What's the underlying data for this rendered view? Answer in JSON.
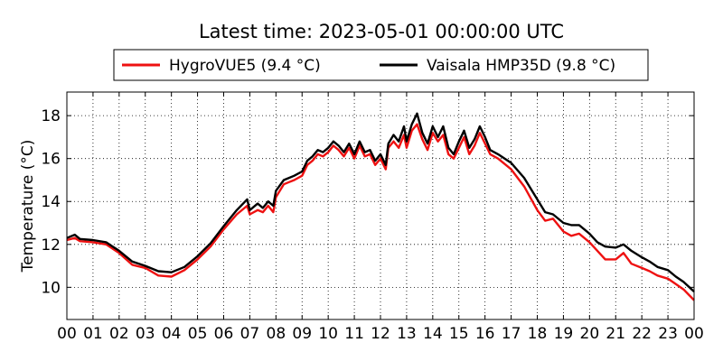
{
  "chart_data": {
    "type": "line",
    "title": "Latest time: 2023-05-01 00:00:00 UTC",
    "ylabel": "Temperature (°C)",
    "xlabel": "",
    "xlim": [
      0,
      24
    ],
    "ylim": [
      8.5,
      19.1
    ],
    "x_ticks": [
      "00",
      "01",
      "02",
      "03",
      "04",
      "05",
      "06",
      "07",
      "08",
      "09",
      "10",
      "11",
      "12",
      "13",
      "14",
      "15",
      "16",
      "17",
      "18",
      "19",
      "20",
      "21",
      "22",
      "23",
      "00"
    ],
    "y_ticks": [
      "10",
      "12",
      "14",
      "16",
      "18"
    ],
    "grid": true,
    "legend_position": "top-center",
    "series": [
      {
        "name": "HygroVUE5 (9.4 °C)",
        "color": "#ee1111",
        "points": [
          [
            0.0,
            12.2
          ],
          [
            0.3,
            12.3
          ],
          [
            0.5,
            12.15
          ],
          [
            1.0,
            12.1
          ],
          [
            1.5,
            12.0
          ],
          [
            2.0,
            11.6
          ],
          [
            2.5,
            11.05
          ],
          [
            3.0,
            10.9
          ],
          [
            3.5,
            10.55
          ],
          [
            4.0,
            10.5
          ],
          [
            4.5,
            10.8
          ],
          [
            5.0,
            11.3
          ],
          [
            5.5,
            11.9
          ],
          [
            6.0,
            12.7
          ],
          [
            6.5,
            13.4
          ],
          [
            6.9,
            13.8
          ],
          [
            7.0,
            13.4
          ],
          [
            7.3,
            13.6
          ],
          [
            7.5,
            13.5
          ],
          [
            7.7,
            13.8
          ],
          [
            7.9,
            13.5
          ],
          [
            8.0,
            14.2
          ],
          [
            8.3,
            14.8
          ],
          [
            8.5,
            14.9
          ],
          [
            8.7,
            15.0
          ],
          [
            9.0,
            15.2
          ],
          [
            9.2,
            15.7
          ],
          [
            9.4,
            15.9
          ],
          [
            9.6,
            16.2
          ],
          [
            9.8,
            16.1
          ],
          [
            10.0,
            16.3
          ],
          [
            10.2,
            16.6
          ],
          [
            10.4,
            16.4
          ],
          [
            10.6,
            16.1
          ],
          [
            10.8,
            16.5
          ],
          [
            11.0,
            16.0
          ],
          [
            11.2,
            16.6
          ],
          [
            11.4,
            16.1
          ],
          [
            11.6,
            16.2
          ],
          [
            11.8,
            15.7
          ],
          [
            12.0,
            16.0
          ],
          [
            12.2,
            15.5
          ],
          [
            12.3,
            16.5
          ],
          [
            12.5,
            16.8
          ],
          [
            12.7,
            16.5
          ],
          [
            12.9,
            17.1
          ],
          [
            13.0,
            16.5
          ],
          [
            13.2,
            17.3
          ],
          [
            13.4,
            17.6
          ],
          [
            13.6,
            16.9
          ],
          [
            13.8,
            16.4
          ],
          [
            14.0,
            17.2
          ],
          [
            14.2,
            16.8
          ],
          [
            14.4,
            17.1
          ],
          [
            14.6,
            16.2
          ],
          [
            14.8,
            16.0
          ],
          [
            15.0,
            16.5
          ],
          [
            15.2,
            17.0
          ],
          [
            15.4,
            16.2
          ],
          [
            15.6,
            16.6
          ],
          [
            15.8,
            17.2
          ],
          [
            16.0,
            16.7
          ],
          [
            16.2,
            16.2
          ],
          [
            16.5,
            16.0
          ],
          [
            17.0,
            15.5
          ],
          [
            17.5,
            14.7
          ],
          [
            18.0,
            13.6
          ],
          [
            18.3,
            13.1
          ],
          [
            18.6,
            13.2
          ],
          [
            19.0,
            12.6
          ],
          [
            19.3,
            12.4
          ],
          [
            19.6,
            12.5
          ],
          [
            20.0,
            12.1
          ],
          [
            20.3,
            11.7
          ],
          [
            20.6,
            11.3
          ],
          [
            21.0,
            11.3
          ],
          [
            21.3,
            11.6
          ],
          [
            21.6,
            11.1
          ],
          [
            22.0,
            10.9
          ],
          [
            22.3,
            10.75
          ],
          [
            22.6,
            10.55
          ],
          [
            23.0,
            10.4
          ],
          [
            23.3,
            10.15
          ],
          [
            23.6,
            9.9
          ],
          [
            24.0,
            9.4
          ]
        ]
      },
      {
        "name": "Vaisala HMP35D (9.8 °C)",
        "color": "#000000",
        "points": [
          [
            0.0,
            12.3
          ],
          [
            0.3,
            12.45
          ],
          [
            0.5,
            12.25
          ],
          [
            1.0,
            12.2
          ],
          [
            1.5,
            12.1
          ],
          [
            2.0,
            11.7
          ],
          [
            2.5,
            11.2
          ],
          [
            3.0,
            11.0
          ],
          [
            3.5,
            10.75
          ],
          [
            4.0,
            10.7
          ],
          [
            4.5,
            10.95
          ],
          [
            5.0,
            11.45
          ],
          [
            5.5,
            12.05
          ],
          [
            6.0,
            12.85
          ],
          [
            6.5,
            13.6
          ],
          [
            6.9,
            14.1
          ],
          [
            7.0,
            13.6
          ],
          [
            7.3,
            13.9
          ],
          [
            7.5,
            13.7
          ],
          [
            7.7,
            14.0
          ],
          [
            7.9,
            13.8
          ],
          [
            8.0,
            14.5
          ],
          [
            8.3,
            15.0
          ],
          [
            8.5,
            15.1
          ],
          [
            8.7,
            15.2
          ],
          [
            9.0,
            15.4
          ],
          [
            9.2,
            15.9
          ],
          [
            9.4,
            16.1
          ],
          [
            9.6,
            16.4
          ],
          [
            9.8,
            16.3
          ],
          [
            10.0,
            16.5
          ],
          [
            10.2,
            16.8
          ],
          [
            10.4,
            16.6
          ],
          [
            10.6,
            16.3
          ],
          [
            10.8,
            16.7
          ],
          [
            11.0,
            16.2
          ],
          [
            11.2,
            16.8
          ],
          [
            11.4,
            16.3
          ],
          [
            11.6,
            16.4
          ],
          [
            11.8,
            15.9
          ],
          [
            12.0,
            16.2
          ],
          [
            12.2,
            15.7
          ],
          [
            12.3,
            16.7
          ],
          [
            12.5,
            17.1
          ],
          [
            12.7,
            16.8
          ],
          [
            12.9,
            17.5
          ],
          [
            13.0,
            16.8
          ],
          [
            13.2,
            17.6
          ],
          [
            13.4,
            18.1
          ],
          [
            13.6,
            17.2
          ],
          [
            13.8,
            16.7
          ],
          [
            14.0,
            17.5
          ],
          [
            14.2,
            17.0
          ],
          [
            14.4,
            17.5
          ],
          [
            14.6,
            16.5
          ],
          [
            14.8,
            16.2
          ],
          [
            15.0,
            16.8
          ],
          [
            15.2,
            17.3
          ],
          [
            15.4,
            16.5
          ],
          [
            15.6,
            16.9
          ],
          [
            15.8,
            17.5
          ],
          [
            16.0,
            17.0
          ],
          [
            16.2,
            16.4
          ],
          [
            16.5,
            16.2
          ],
          [
            17.0,
            15.8
          ],
          [
            17.5,
            15.1
          ],
          [
            18.0,
            14.1
          ],
          [
            18.3,
            13.5
          ],
          [
            18.6,
            13.4
          ],
          [
            19.0,
            13.0
          ],
          [
            19.3,
            12.9
          ],
          [
            19.6,
            12.9
          ],
          [
            20.0,
            12.5
          ],
          [
            20.3,
            12.1
          ],
          [
            20.6,
            11.9
          ],
          [
            21.0,
            11.85
          ],
          [
            21.3,
            12.0
          ],
          [
            21.6,
            11.7
          ],
          [
            22.0,
            11.4
          ],
          [
            22.3,
            11.2
          ],
          [
            22.6,
            10.95
          ],
          [
            23.0,
            10.8
          ],
          [
            23.3,
            10.5
          ],
          [
            23.6,
            10.25
          ],
          [
            24.0,
            9.8
          ]
        ]
      }
    ]
  }
}
